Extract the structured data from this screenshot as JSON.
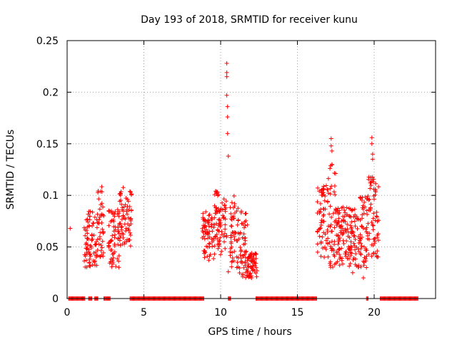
{
  "chart_data": {
    "type": "scatter",
    "title": "Day 193 of 2018, SRMTID for receiver kunu",
    "xlabel": "GPS time / hours",
    "ylabel": "SRMTID / TECUs",
    "xlim": [
      0,
      24
    ],
    "ylim": [
      0,
      0.25
    ],
    "xticks": [
      0,
      5,
      10,
      15,
      20
    ],
    "xtick_labels": [
      "0",
      "5",
      "10",
      "15",
      "20"
    ],
    "yticks": [
      0,
      0.05,
      0.1,
      0.15,
      0.2,
      0.25
    ],
    "ytick_labels": [
      "0",
      "0.05",
      "0.1",
      "0.15",
      "0.2",
      "0.25"
    ],
    "grid": true,
    "marker": "+",
    "color": "#ff0000",
    "zero_bands": [
      [
        0.1,
        1.2
      ],
      [
        1.4,
        1.6
      ],
      [
        1.8,
        2.0
      ],
      [
        2.4,
        2.8
      ],
      [
        4.1,
        8.9
      ],
      [
        10.5,
        10.7
      ],
      [
        12.3,
        16.3
      ],
      [
        19.5,
        19.6
      ],
      [
        20.4,
        22.9
      ]
    ],
    "clusters": [
      {
        "x": [
          1.1,
          2.0
        ],
        "ylo": 0.03,
        "yhi": 0.085
      },
      {
        "x": [
          2.0,
          2.4
        ],
        "ylo": 0.035,
        "yhi": 0.11
      },
      {
        "x": [
          2.7,
          3.4
        ],
        "ylo": 0.03,
        "yhi": 0.09
      },
      {
        "x": [
          3.4,
          4.2
        ],
        "ylo": 0.05,
        "yhi": 0.11
      },
      {
        "x": [
          8.8,
          9.6
        ],
        "ylo": 0.035,
        "yhi": 0.085
      },
      {
        "x": [
          9.6,
          10.4
        ],
        "ylo": 0.04,
        "yhi": 0.105
      },
      {
        "x": [
          10.6,
          11.2
        ],
        "ylo": 0.03,
        "yhi": 0.1
      },
      {
        "x": [
          11.2,
          11.8
        ],
        "ylo": 0.02,
        "yhi": 0.085
      },
      {
        "x": [
          11.8,
          12.4
        ],
        "ylo": 0.02,
        "yhi": 0.045
      },
      {
        "x": [
          16.3,
          17.0
        ],
        "ylo": 0.04,
        "yhi": 0.11
      },
      {
        "x": [
          17.0,
          17.5
        ],
        "ylo": 0.03,
        "yhi": 0.135
      },
      {
        "x": [
          17.5,
          18.3
        ],
        "ylo": 0.03,
        "yhi": 0.09
      },
      {
        "x": [
          18.3,
          19.0
        ],
        "ylo": 0.03,
        "yhi": 0.09
      },
      {
        "x": [
          19.0,
          19.6
        ],
        "ylo": 0.03,
        "yhi": 0.1
      },
      {
        "x": [
          19.6,
          20.3
        ],
        "ylo": 0.04,
        "yhi": 0.12
      }
    ],
    "notable_points": [
      {
        "x": 0.2,
        "y": 0.068
      },
      {
        "x": 10.4,
        "y": 0.228
      },
      {
        "x": 10.4,
        "y": 0.219
      },
      {
        "x": 10.4,
        "y": 0.215
      },
      {
        "x": 10.4,
        "y": 0.197
      },
      {
        "x": 10.45,
        "y": 0.186
      },
      {
        "x": 10.45,
        "y": 0.176
      },
      {
        "x": 10.45,
        "y": 0.16
      },
      {
        "x": 10.5,
        "y": 0.138
      },
      {
        "x": 10.5,
        "y": 0.026
      },
      {
        "x": 17.2,
        "y": 0.155
      },
      {
        "x": 17.2,
        "y": 0.148
      },
      {
        "x": 17.25,
        "y": 0.143
      },
      {
        "x": 17.25,
        "y": 0.13
      },
      {
        "x": 19.85,
        "y": 0.156
      },
      {
        "x": 19.85,
        "y": 0.15
      },
      {
        "x": 19.9,
        "y": 0.14
      },
      {
        "x": 19.9,
        "y": 0.135
      },
      {
        "x": 18.6,
        "y": 0.025
      },
      {
        "x": 19.3,
        "y": 0.02
      }
    ]
  }
}
